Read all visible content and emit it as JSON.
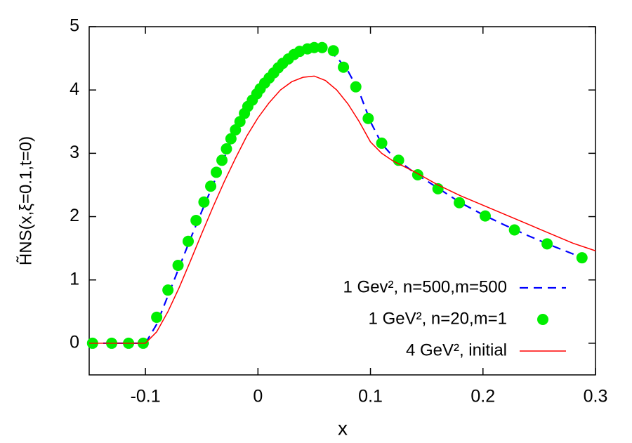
{
  "chart_data": {
    "type": "line",
    "x_label": "x",
    "y_label": "H̃NS(x,ξ=0.1,t=0)",
    "xlim": [
      -0.15,
      0.3
    ],
    "ylim": [
      -0.5,
      5
    ],
    "xticks": [
      -0.1,
      0,
      0.1,
      0.2,
      0.3
    ],
    "yticks": [
      0,
      1,
      2,
      3,
      4,
      5
    ],
    "grid": false,
    "legend": "lower right",
    "series": [
      {
        "name": "1 Gev², n=500,m=500",
        "color": "#0000ff",
        "style": "dashed",
        "x": [
          -0.15,
          -0.1,
          -0.09,
          -0.08,
          -0.07,
          -0.06,
          -0.05,
          -0.04,
          -0.03,
          -0.02,
          -0.01,
          0,
          0.01,
          0.02,
          0.03,
          0.04,
          0.05,
          0.06,
          0.07,
          0.08,
          0.09,
          0.1,
          0.11,
          0.12,
          0.14,
          0.16,
          0.18,
          0.2,
          0.22,
          0.24,
          0.26,
          0.28,
          0.29
        ],
        "values": [
          0,
          0,
          0.3,
          0.75,
          1.2,
          1.65,
          2.08,
          2.5,
          2.93,
          3.35,
          3.72,
          4.0,
          4.22,
          4.4,
          4.54,
          4.63,
          4.67,
          4.64,
          4.52,
          4.3,
          3.97,
          3.5,
          3.15,
          2.95,
          2.68,
          2.45,
          2.22,
          2.03,
          1.86,
          1.7,
          1.55,
          1.41,
          1.33
        ]
      },
      {
        "name": "1 GeV², n=20,m=1",
        "color": "#00ee00",
        "style": "markers",
        "x": [
          -0.147,
          -0.13,
          -0.115,
          -0.102,
          -0.09,
          -0.08,
          -0.071,
          -0.062,
          -0.055,
          -0.048,
          -0.042,
          -0.037,
          -0.032,
          -0.028,
          -0.024,
          -0.02,
          -0.016,
          -0.012,
          -0.009,
          -0.005,
          -0.001,
          0.002,
          0.006,
          0.01,
          0.014,
          0.018,
          0.022,
          0.027,
          0.032,
          0.037,
          0.044,
          0.05,
          0.057,
          0.067,
          0.076,
          0.087,
          0.098,
          0.11,
          0.125,
          0.142,
          0.16,
          0.179,
          0.202,
          0.228,
          0.257,
          0.288
        ],
        "values": [
          0,
          0,
          0,
          0,
          0.41,
          0.84,
          1.23,
          1.61,
          1.94,
          2.23,
          2.48,
          2.7,
          2.89,
          3.07,
          3.23,
          3.37,
          3.5,
          3.63,
          3.74,
          3.84,
          3.94,
          4.02,
          4.11,
          4.19,
          4.27,
          4.35,
          4.42,
          4.49,
          4.56,
          4.61,
          4.65,
          4.67,
          4.67,
          4.62,
          4.36,
          4.05,
          3.55,
          3.16,
          2.89,
          2.66,
          2.44,
          2.22,
          2.01,
          1.79,
          1.57,
          1.35
        ]
      },
      {
        "name": "4 GeV², initial",
        "color": "#ff0000",
        "style": "solid",
        "x": [
          -0.15,
          -0.1,
          -0.09,
          -0.08,
          -0.07,
          -0.06,
          -0.05,
          -0.04,
          -0.03,
          -0.02,
          -0.01,
          0,
          0.01,
          0.02,
          0.03,
          0.04,
          0.05,
          0.06,
          0.07,
          0.08,
          0.09,
          0.1,
          0.11,
          0.12,
          0.14,
          0.16,
          0.18,
          0.2,
          0.22,
          0.24,
          0.26,
          0.28,
          0.3
        ],
        "values": [
          0,
          0,
          0.18,
          0.5,
          0.88,
          1.3,
          1.73,
          2.15,
          2.55,
          2.92,
          3.27,
          3.56,
          3.8,
          4.0,
          4.13,
          4.2,
          4.22,
          4.15,
          4.0,
          3.78,
          3.5,
          3.18,
          3.0,
          2.88,
          2.7,
          2.5,
          2.33,
          2.18,
          2.03,
          1.88,
          1.73,
          1.58,
          1.46
        ]
      }
    ]
  }
}
